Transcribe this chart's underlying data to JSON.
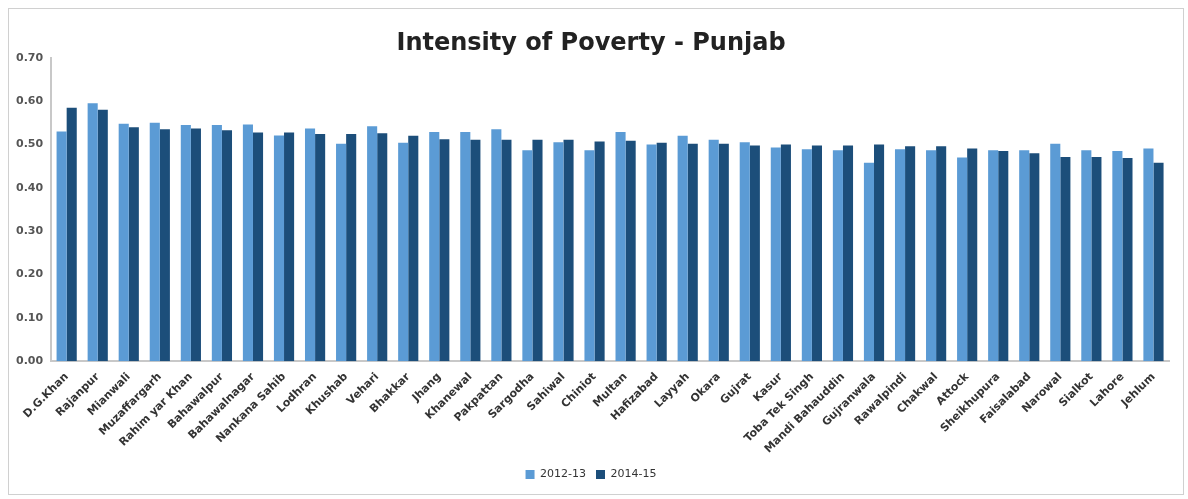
{
  "chart_data": {
    "type": "bar",
    "title": "Intensity of Poverty - Punjab",
    "categories": [
      "D.G.Khan",
      "Rajanpur",
      "Mianwali",
      "Muzaffargarh",
      "Rahim yar Khan",
      "Bahawalpur",
      "Bahawalnagar",
      "Nankana Sahib",
      "Lodhran",
      "Khushab",
      "Vehari",
      "Bhakkar",
      "Jhang",
      "Khanewal",
      "Pakpattan",
      "Sargodha",
      "Sahiwal",
      "Chiniot",
      "Multan",
      "Hafizabad",
      "Layyah",
      "Okara",
      "Gujrat",
      "Kasur",
      "Toba Tek Singh",
      "Mandi Bahauddin",
      "Gujranwala",
      "Rawalpindi",
      "Chakwal",
      "Attock",
      "Sheikhupura",
      "Faisalabad",
      "Narowal",
      "Sialkot",
      "Lahore",
      "Jehlum"
    ],
    "series": [
      {
        "name": "2012-13",
        "color": "#5b9bd5",
        "values": [
          0.53,
          0.595,
          0.548,
          0.55,
          0.545,
          0.545,
          0.546,
          0.521,
          0.537,
          0.502,
          0.542,
          0.504,
          0.529,
          0.529,
          0.535,
          0.487,
          0.505,
          0.487,
          0.529,
          0.5,
          0.52,
          0.511,
          0.505,
          0.493,
          0.489,
          0.487,
          0.458,
          0.489,
          0.487,
          0.47,
          0.487,
          0.487,
          0.502,
          0.487,
          0.485,
          0.491
        ]
      },
      {
        "name": "2014-15",
        "color": "#1c4e7a",
        "values": [
          0.585,
          0.58,
          0.54,
          0.535,
          0.537,
          0.533,
          0.528,
          0.528,
          0.524,
          0.524,
          0.526,
          0.52,
          0.512,
          0.511,
          0.511,
          0.511,
          0.511,
          0.507,
          0.509,
          0.504,
          0.502,
          0.502,
          0.498,
          0.5,
          0.498,
          0.498,
          0.5,
          0.496,
          0.496,
          0.491,
          0.485,
          0.48,
          0.471,
          0.471,
          0.469,
          0.458
        ]
      }
    ],
    "ylim": [
      0,
      0.7
    ],
    "yticks": [
      {
        "value": 0,
        "label": "0.00"
      },
      {
        "value": 0.1,
        "label": "0.10"
      },
      {
        "value": 0.2,
        "label": "0.20"
      },
      {
        "value": 0.3,
        "label": "0.30"
      },
      {
        "value": 0.4,
        "label": "0.40"
      },
      {
        "value": 0.5,
        "label": "0.50"
      },
      {
        "value": 0.6,
        "label": "0.60"
      },
      {
        "value": 0.7,
        "label": "0.70"
      }
    ],
    "grid": false,
    "legend": "bottom"
  }
}
